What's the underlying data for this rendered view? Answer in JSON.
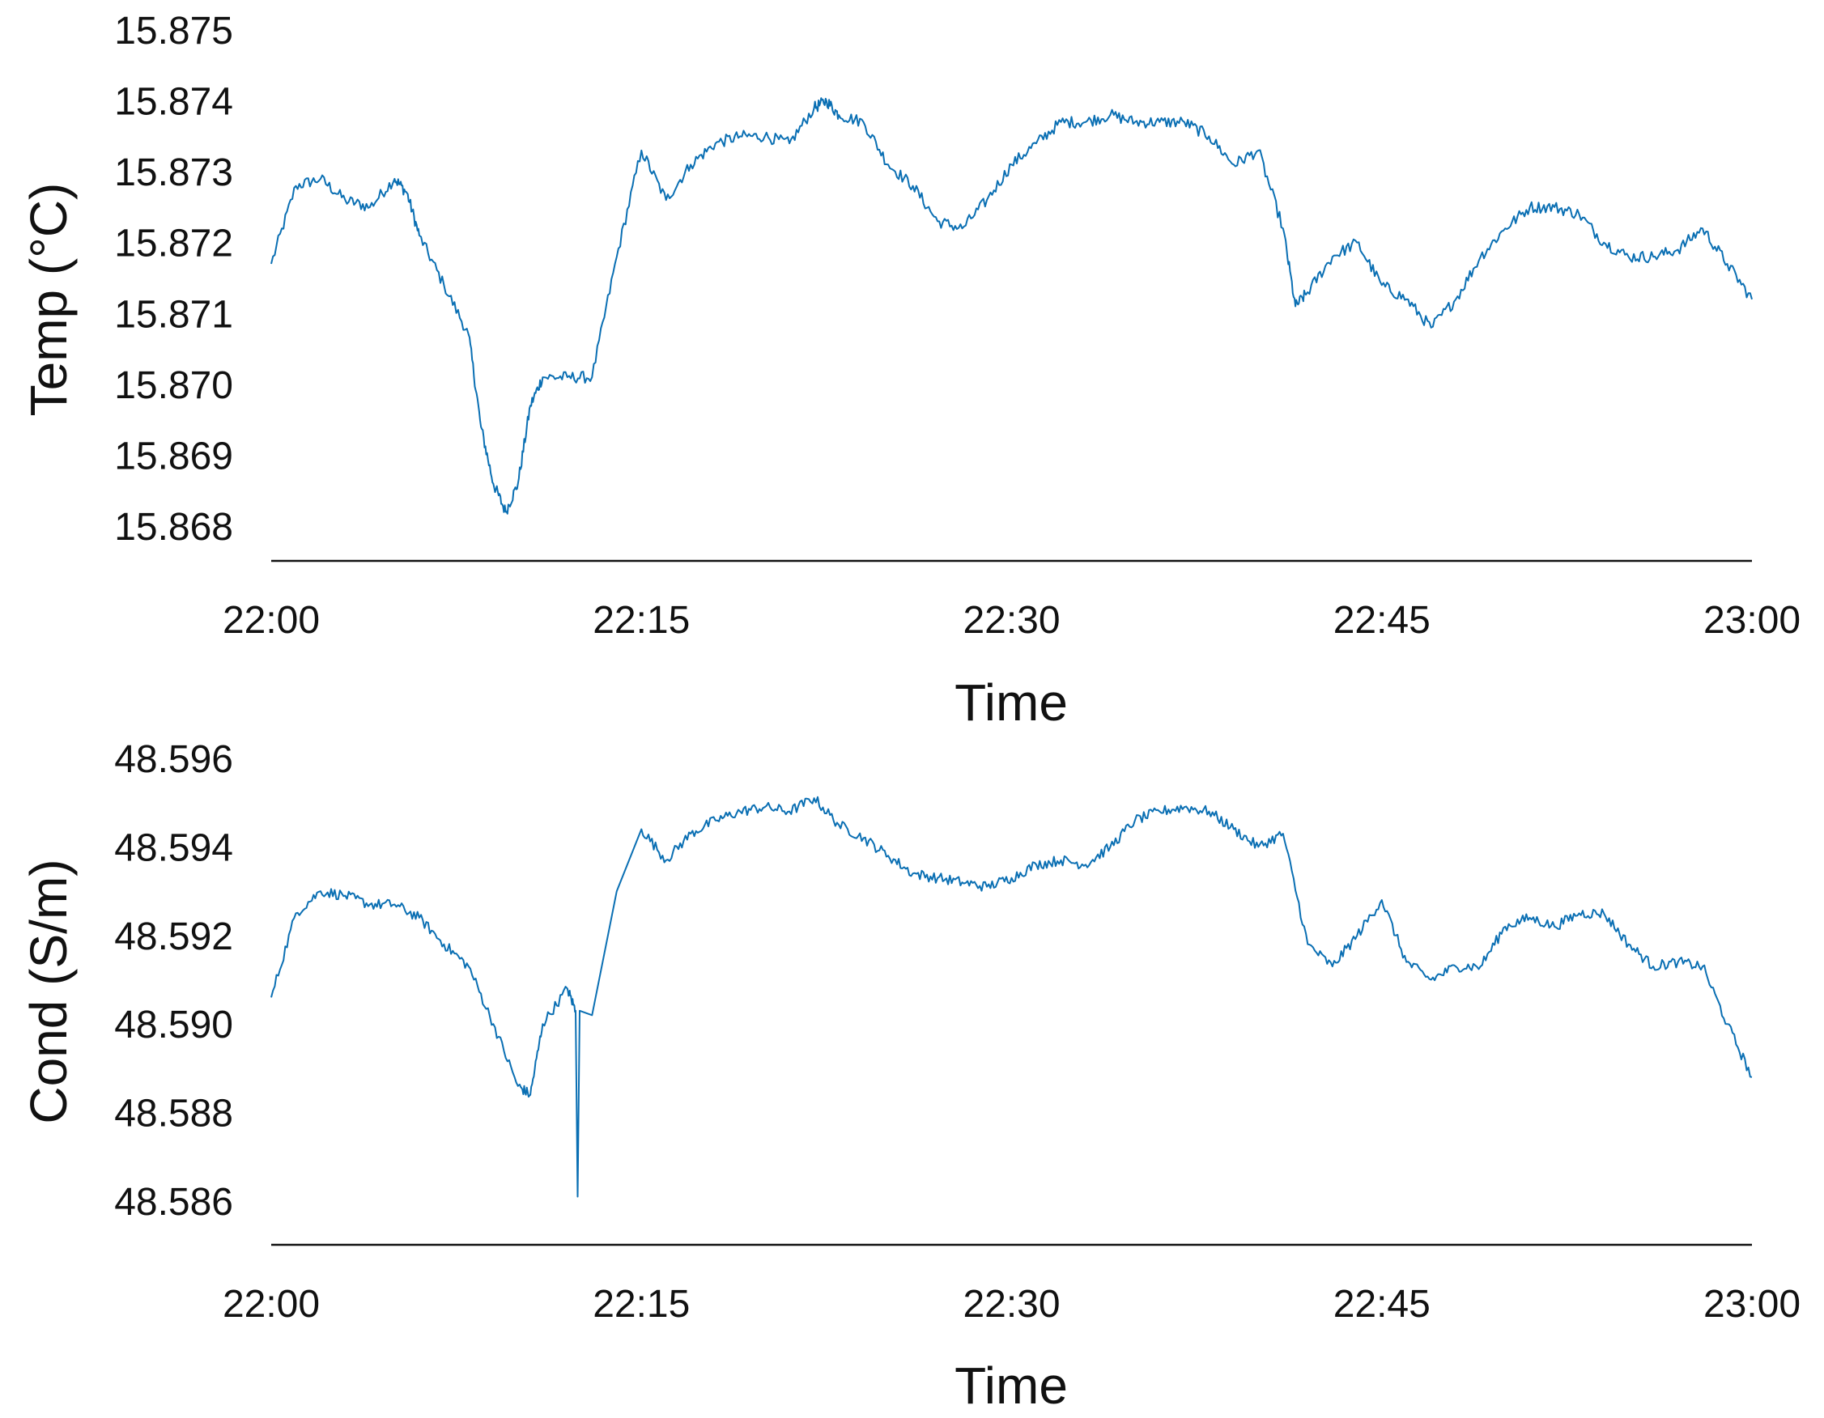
{
  "colors": {
    "series": "#0a6fb3",
    "axis": "#111111"
  },
  "chart_data": [
    {
      "type": "line",
      "xlabel": "Time",
      "ylabel": "Temp (°C)",
      "x_ticks": [
        "22:00",
        "22:15",
        "22:30",
        "22:45",
        "23:00"
      ],
      "xlim": [
        "22:00",
        "23:00"
      ],
      "y_ticks": [
        "15.875",
        "15.874",
        "15.873",
        "15.872",
        "15.871",
        "15.870",
        "15.869",
        "15.868"
      ],
      "ylim": [
        15.8675,
        15.875
      ],
      "grid": false,
      "series": [
        {
          "x": [
            "22:00",
            "22:01",
            "22:02",
            "22:03",
            "22:04",
            "22:05",
            "22:05:30",
            "22:06",
            "22:07",
            "22:08",
            "22:08:30",
            "22:09",
            "22:09:30",
            "22:10",
            "22:10:30",
            "22:11",
            "22:12",
            "22:13",
            "22:14",
            "22:15",
            "22:16",
            "22:17",
            "22:18",
            "22:19",
            "22:20",
            "22:21",
            "22:22",
            "22:22:30",
            "22:23",
            "22:24",
            "22:25",
            "22:26",
            "22:27",
            "22:28",
            "22:29",
            "22:30",
            "22:31",
            "22:32",
            "22:33",
            "22:34",
            "22:35",
            "22:36",
            "22:37",
            "22:38",
            "22:39",
            "22:40",
            "22:41",
            "22:41:30",
            "22:42",
            "22:43",
            "22:44",
            "22:45",
            "22:46",
            "22:47",
            "22:48",
            "22:49",
            "22:50",
            "22:51",
            "22:52",
            "22:53",
            "22:54",
            "22:55",
            "22:56",
            "22:57",
            "22:58",
            "22:59",
            "23:00"
          ],
          "values": [
            15.8717,
            15.8728,
            15.8729,
            15.8726,
            15.8725,
            15.8729,
            15.8727,
            15.8721,
            15.8714,
            15.8707,
            15.8694,
            15.8686,
            15.8682,
            15.8686,
            15.8697,
            15.8701,
            15.8701,
            15.8701,
            15.8718,
            15.8733,
            15.8726,
            15.8731,
            15.8734,
            15.8735,
            15.8735,
            15.8734,
            15.8739,
            15.874,
            15.8738,
            15.8737,
            15.8731,
            15.8728,
            15.8723,
            15.8722,
            15.8726,
            15.8731,
            15.8734,
            15.8737,
            15.8737,
            15.8738,
            15.8737,
            15.8737,
            15.8737,
            15.8735,
            15.8731,
            15.8733,
            15.8722,
            15.8711,
            15.8713,
            15.8718,
            15.872,
            15.8714,
            15.8712,
            15.8708,
            15.8712,
            15.8718,
            15.8722,
            15.8725,
            15.8725,
            15.8724,
            15.872,
            15.8718,
            15.8718,
            15.8719,
            15.8722,
            15.8717,
            15.8712
          ]
        }
      ]
    },
    {
      "type": "line",
      "xlabel": "Time",
      "ylabel": "Cond (S/m)",
      "x_ticks": [
        "22:00",
        "22:15",
        "22:30",
        "22:45",
        "23:00"
      ],
      "xlim": [
        "22:00",
        "23:00"
      ],
      "y_ticks": [
        "48.596",
        "48.594",
        "48.592",
        "48.590",
        "48.588",
        "48.586"
      ],
      "ylim": [
        48.585,
        48.596
      ],
      "grid": false,
      "series": [
        {
          "x": [
            "22:00",
            "22:01",
            "22:02",
            "22:03",
            "22:04",
            "22:05",
            "22:06",
            "22:07",
            "22:08",
            "22:09",
            "22:10",
            "22:10:30",
            "22:11",
            "22:12",
            "22:12:20",
            "22:12:25",
            "22:12:30",
            "22:13",
            "22:14",
            "22:15",
            "22:16",
            "22:17",
            "22:18",
            "22:19",
            "22:20",
            "22:21",
            "22:22",
            "22:23",
            "22:24",
            "22:25",
            "22:26",
            "22:27",
            "22:28",
            "22:29",
            "22:30",
            "22:31",
            "22:32",
            "22:33",
            "22:34",
            "22:35",
            "22:36",
            "22:37",
            "22:38",
            "22:39",
            "22:40",
            "22:41",
            "22:42",
            "22:43",
            "22:44",
            "22:45",
            "22:46",
            "22:47",
            "22:48",
            "22:49",
            "22:50",
            "22:51",
            "22:52",
            "22:53",
            "22:54",
            "22:55",
            "22:56",
            "22:57",
            "22:58",
            "22:59",
            "23:00"
          ],
          "values": [
            48.5906,
            48.5925,
            48.593,
            48.5929,
            48.5927,
            48.5927,
            48.5924,
            48.5918,
            48.5913,
            48.59,
            48.5886,
            48.5884,
            48.59,
            48.5908,
            48.5903,
            48.5861,
            48.5903,
            48.5902,
            48.593,
            48.5944,
            48.5937,
            48.5943,
            48.5946,
            48.5948,
            48.5949,
            48.5948,
            48.5951,
            48.5945,
            48.5942,
            48.5938,
            48.5934,
            48.5933,
            48.5932,
            48.5931,
            48.5933,
            48.5936,
            48.5937,
            48.5936,
            48.594,
            48.5946,
            48.5948,
            48.5949,
            48.5948,
            48.5944,
            48.594,
            48.5943,
            48.5918,
            48.5913,
            48.592,
            48.5928,
            48.5914,
            48.591,
            48.5913,
            48.5913,
            48.5922,
            48.5924,
            48.5922,
            48.5925,
            48.5925,
            48.5918,
            48.5913,
            48.5914,
            48.5913,
            48.59,
            48.5888
          ]
        }
      ]
    }
  ]
}
